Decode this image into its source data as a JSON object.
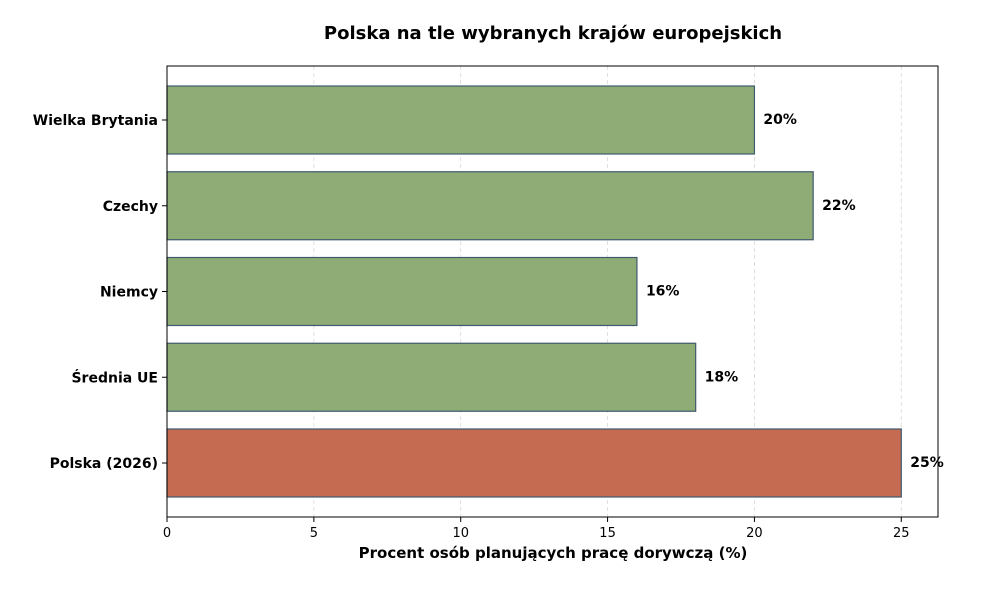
{
  "chart_data": {
    "type": "bar",
    "orientation": "horizontal",
    "title": "Polska na tle wybranych krajów europejskich",
    "xlabel": "Procent osób planujących pracę dorywczą (%)",
    "ylabel": "",
    "categories": [
      "Wielka Brytania",
      "Czechy",
      "Niemcy",
      "Średnia UE",
      "Polska (2026)"
    ],
    "values": [
      20,
      22,
      16,
      18,
      25
    ],
    "value_labels": [
      "20%",
      "22%",
      "16%",
      "18%",
      "25%"
    ],
    "bar_colors": [
      "#8fac76",
      "#8fac76",
      "#8fac76",
      "#8fac76",
      "#c46b51"
    ],
    "edge_color": "#3f5a6e",
    "xlim": [
      0,
      26.25
    ],
    "xticks": [
      0,
      5,
      10,
      15,
      20,
      25
    ],
    "xtick_labels": [
      "0",
      "5",
      "10",
      "15",
      "20",
      "25"
    ],
    "grid": "x-dashed",
    "legend": "none"
  }
}
